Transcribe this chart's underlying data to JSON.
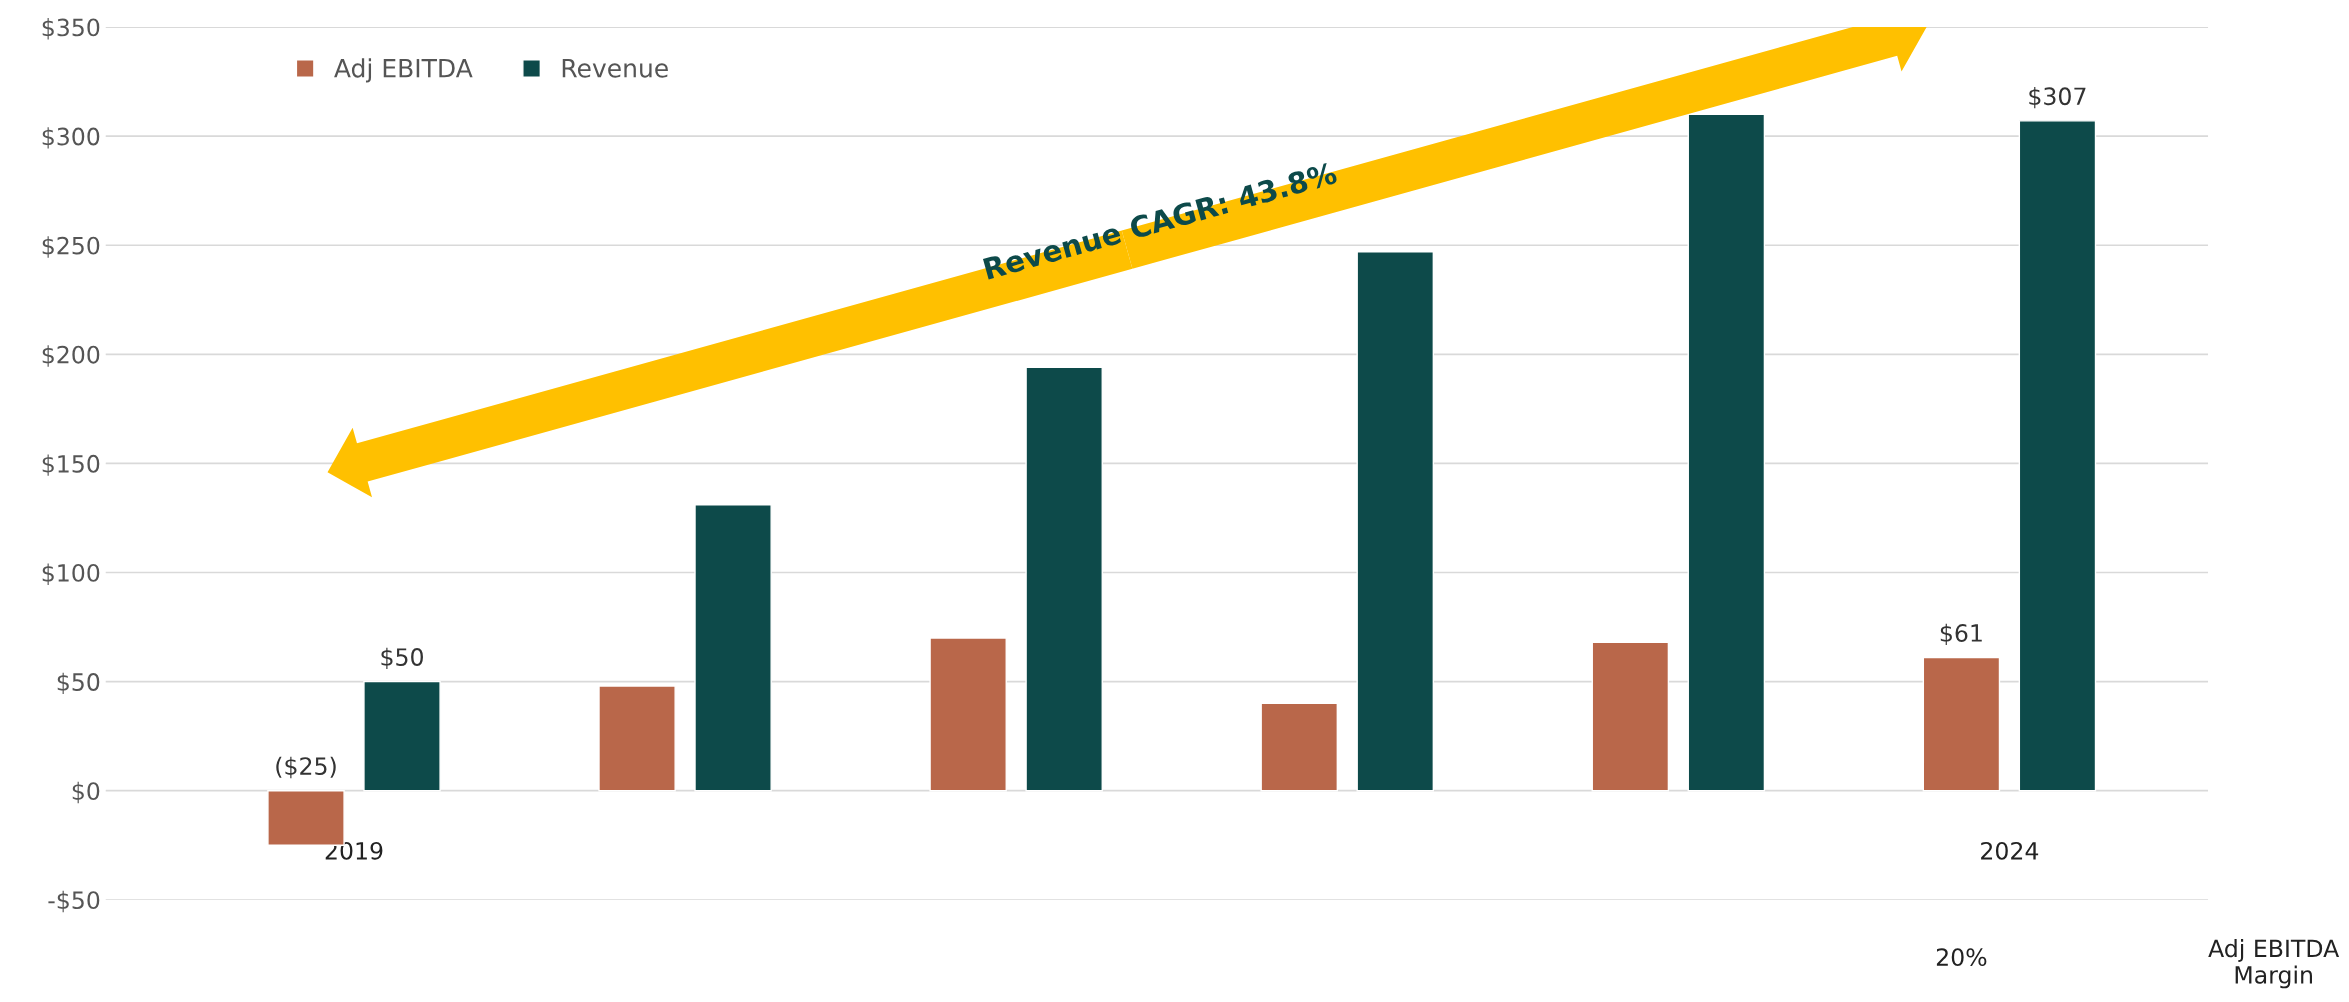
{
  "chart_data": {
    "type": "bar",
    "categories": [
      "2019",
      null,
      null,
      null,
      null,
      "2024"
    ],
    "series": [
      {
        "name": "Adj EBITDA",
        "color": "#b9674a",
        "values": [
          -25,
          48,
          70,
          40,
          68,
          61
        ],
        "value_labels": [
          "($25)",
          null,
          null,
          null,
          null,
          "$61"
        ]
      },
      {
        "name": "Revenue",
        "color": "#0d4a4a",
        "values": [
          50,
          131,
          194,
          247,
          310,
          307
        ],
        "value_labels": [
          "$50",
          null,
          null,
          null,
          null,
          "$307"
        ]
      }
    ],
    "ylim": [
      -50,
      350
    ],
    "yticks": [
      {
        "value": -50,
        "label": "-$50"
      },
      {
        "value": 0,
        "label": "$0"
      },
      {
        "value": 50,
        "label": "$50"
      },
      {
        "value": 100,
        "label": "$100"
      },
      {
        "value": 150,
        "label": "$150"
      },
      {
        "value": 200,
        "label": "$200"
      },
      {
        "value": 250,
        "label": "$250"
      },
      {
        "value": 300,
        "label": "$300"
      },
      {
        "value": 350,
        "label": "$350"
      }
    ],
    "grid": "y",
    "legend": "top left",
    "annotations": [
      "Revenue CAGR: 43.8%",
      "20%",
      "Adj EBITDA Margin"
    ]
  }
}
